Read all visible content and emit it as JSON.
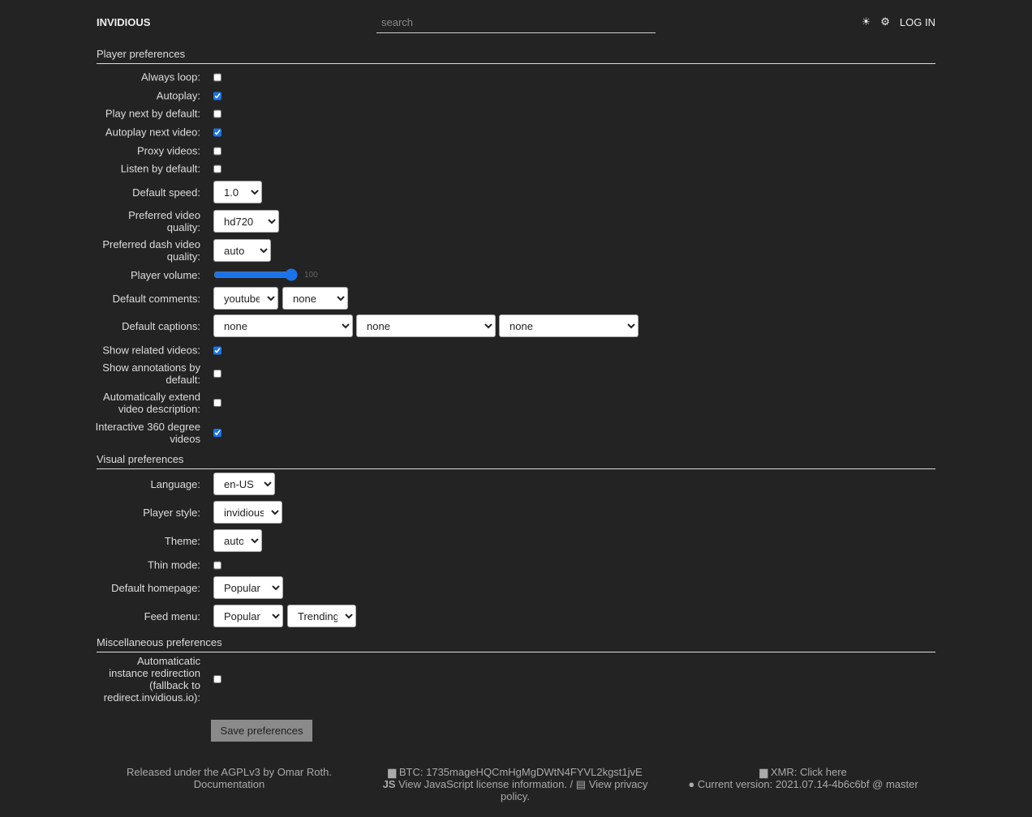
{
  "header": {
    "brand": "INVIDIOUS",
    "search_placeholder": "search",
    "theme_icon": "sun-icon",
    "settings_icon": "gear-icon",
    "login": "LOG IN"
  },
  "player": {
    "title": "Player preferences",
    "always_loop": {
      "label": "Always loop:",
      "checked": false
    },
    "autoplay": {
      "label": "Autoplay:",
      "checked": true
    },
    "play_next": {
      "label": "Play next by default:",
      "checked": false
    },
    "autoplay_next": {
      "label": "Autoplay next video:",
      "checked": true
    },
    "proxy": {
      "label": "Proxy videos:",
      "checked": false
    },
    "listen": {
      "label": "Listen by default:",
      "checked": false
    },
    "speed": {
      "label": "Default speed:",
      "value": "1.0"
    },
    "quality": {
      "label": "Preferred video quality:",
      "value": "hd720"
    },
    "dash": {
      "label": "Preferred dash video quality:",
      "value": "auto"
    },
    "volume": {
      "label": "Player volume:",
      "value": "100"
    },
    "comments": {
      "label": "Default comments:",
      "values": [
        "youtube",
        "none"
      ]
    },
    "captions": {
      "label": "Default captions:",
      "values": [
        "none",
        "none",
        "none"
      ]
    },
    "related": {
      "label": "Show related videos:",
      "checked": true
    },
    "annotations": {
      "label": "Show annotations by default:",
      "checked": false
    },
    "extend": {
      "label": "Automatically extend video description:",
      "checked": false
    },
    "v360": {
      "label": "Interactive 360 degree videos",
      "checked": true
    }
  },
  "visual": {
    "title": "Visual preferences",
    "language": {
      "label": "Language:",
      "value": "en-US"
    },
    "player_style": {
      "label": "Player style:",
      "value": "invidious"
    },
    "theme": {
      "label": "Theme:",
      "value": "auto"
    },
    "thin": {
      "label": "Thin mode:",
      "checked": false
    },
    "homepage": {
      "label": "Default homepage:",
      "value": "Popular"
    },
    "feed": {
      "label": "Feed menu:",
      "values": [
        "Popular",
        "Trending"
      ]
    }
  },
  "misc": {
    "title": "Miscellaneous preferences",
    "redirect": {
      "label": "Automaticatic instance redirection (fallback to redirect.invidious.io):",
      "checked": false
    }
  },
  "save": "Save preferences",
  "footer": {
    "license": "Released under the AGPLv3 by Omar Roth.",
    "docs": "Documentation",
    "btc": "BTC: 1735mageHQCmHgMgDWtN4FYVL2kgst1jvE",
    "js": "View JavaScript license information.",
    "sep": " / ",
    "privacy": "View privacy policy.",
    "xmr": "XMR: Click here",
    "version": "Current version: 2021.07.14-4b6c6bf @ master"
  },
  "accent": "#1a73e8"
}
